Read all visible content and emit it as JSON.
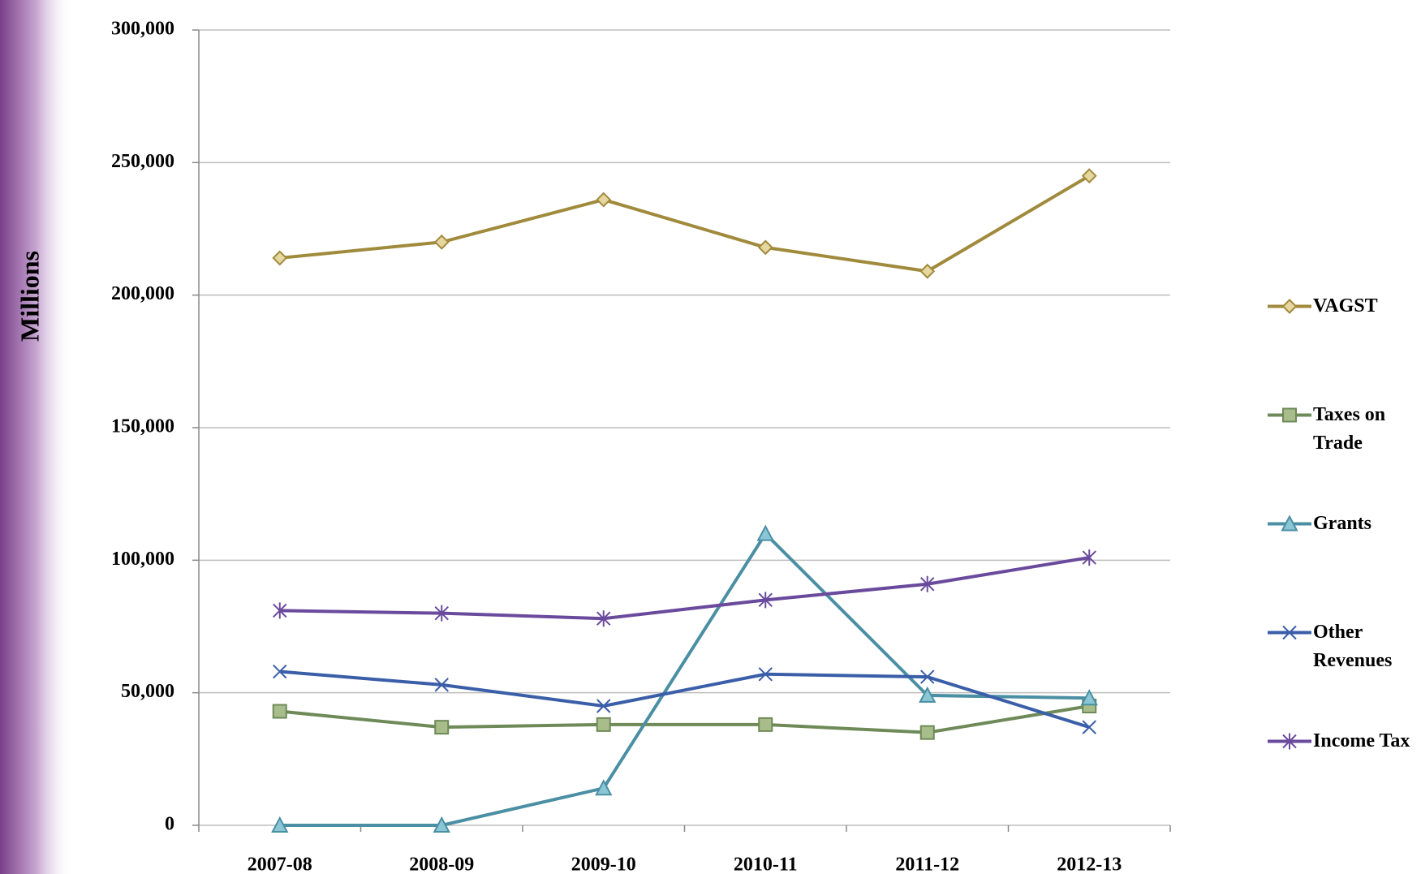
{
  "chart_data": {
    "type": "line",
    "y_axis_label": "Millions",
    "categories": [
      "2007-08",
      "2008-09",
      "2009-10",
      "2010-11",
      "2011-12",
      "2012-13"
    ],
    "series": [
      {
        "name": "VAGST",
        "color": "#a08a3c",
        "marker": "diamond",
        "values": [
          214000,
          220000,
          236000,
          218000,
          209000,
          245000
        ]
      },
      {
        "name": "Taxes on Trade",
        "color": "#6e8a58",
        "marker": "square",
        "values": [
          43000,
          37000,
          38000,
          38000,
          35000,
          45000
        ]
      },
      {
        "name": "Grants",
        "color": "#4a8fa3",
        "marker": "triangle",
        "values": [
          0,
          0,
          14000,
          110000,
          49000,
          48000
        ]
      },
      {
        "name": "Other Revenues",
        "color": "#3a5ea8",
        "marker": "x",
        "values": [
          58000,
          53000,
          45000,
          57000,
          56000,
          37000
        ]
      },
      {
        "name": "Income Tax",
        "color": "#6a4a9c",
        "marker": "star",
        "values": [
          81000,
          80000,
          78000,
          85000,
          91000,
          101000
        ]
      }
    ],
    "ylim": [
      0,
      300000
    ],
    "yticks": [
      0,
      {
        "value": 50000,
        "label": "50,000"
      },
      {
        "value": 100000,
        "label": "100,000"
      },
      {
        "value": 150000,
        "label": "150,000"
      },
      {
        "value": 200000,
        "label": "200,000"
      },
      {
        "value": 250000,
        "label": "250,000"
      },
      {
        "value": 300000,
        "label": "300,000"
      }
    ],
    "grid": true,
    "legend": "right"
  }
}
